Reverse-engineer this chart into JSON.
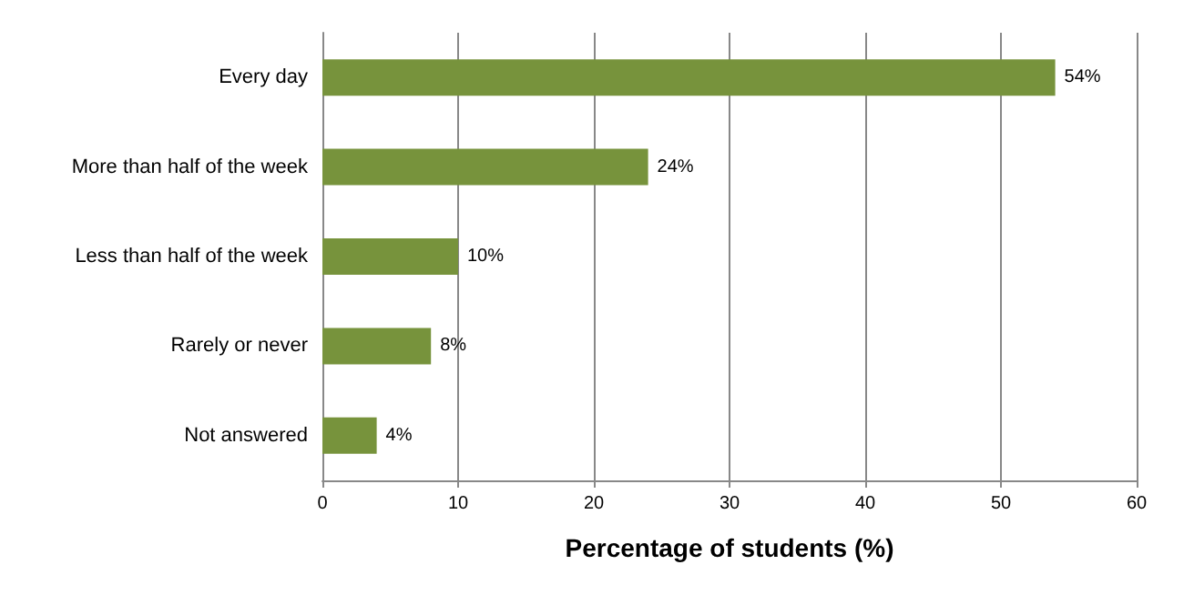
{
  "chart_data": {
    "type": "bar",
    "orientation": "horizontal",
    "categories": [
      "Every day",
      "More than half of the week",
      "Less than half of the week",
      "Rarely or never",
      "Not answered"
    ],
    "values": [
      54,
      24,
      10,
      8,
      4
    ],
    "value_labels": [
      "54%",
      "24%",
      "10%",
      "8%",
      "4%"
    ],
    "color": "#77933c",
    "xlabel": "Percentage of students (%)",
    "xlim": [
      0,
      60
    ],
    "xticks": [
      0,
      10,
      20,
      30,
      40,
      50,
      60
    ],
    "grid": "x"
  }
}
